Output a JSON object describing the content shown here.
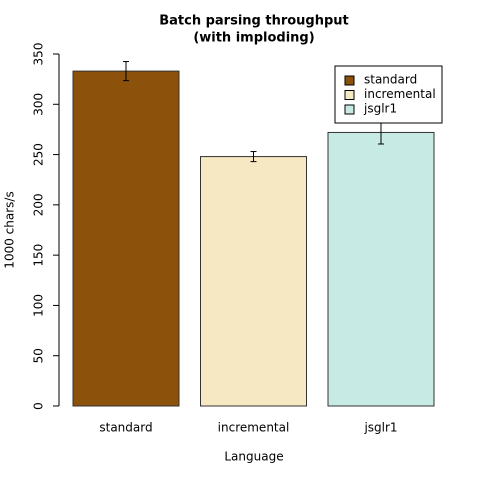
{
  "chart_data": {
    "type": "bar",
    "title": [
      "Batch parsing throughput",
      "(with imploding)"
    ],
    "xlabel": "Language",
    "ylabel": "1000 chars/s",
    "categories": [
      "standard",
      "incremental",
      "jsglr1"
    ],
    "values": [
      333,
      248,
      272
    ],
    "errors": [
      9.5,
      5,
      11.5
    ],
    "colors": [
      "#8c510a",
      "#f6e8c3",
      "#c7eae5"
    ],
    "ylim": [
      0,
      350
    ],
    "yticks": [
      0,
      50,
      100,
      150,
      200,
      250,
      300,
      350
    ],
    "legend": "topright"
  }
}
